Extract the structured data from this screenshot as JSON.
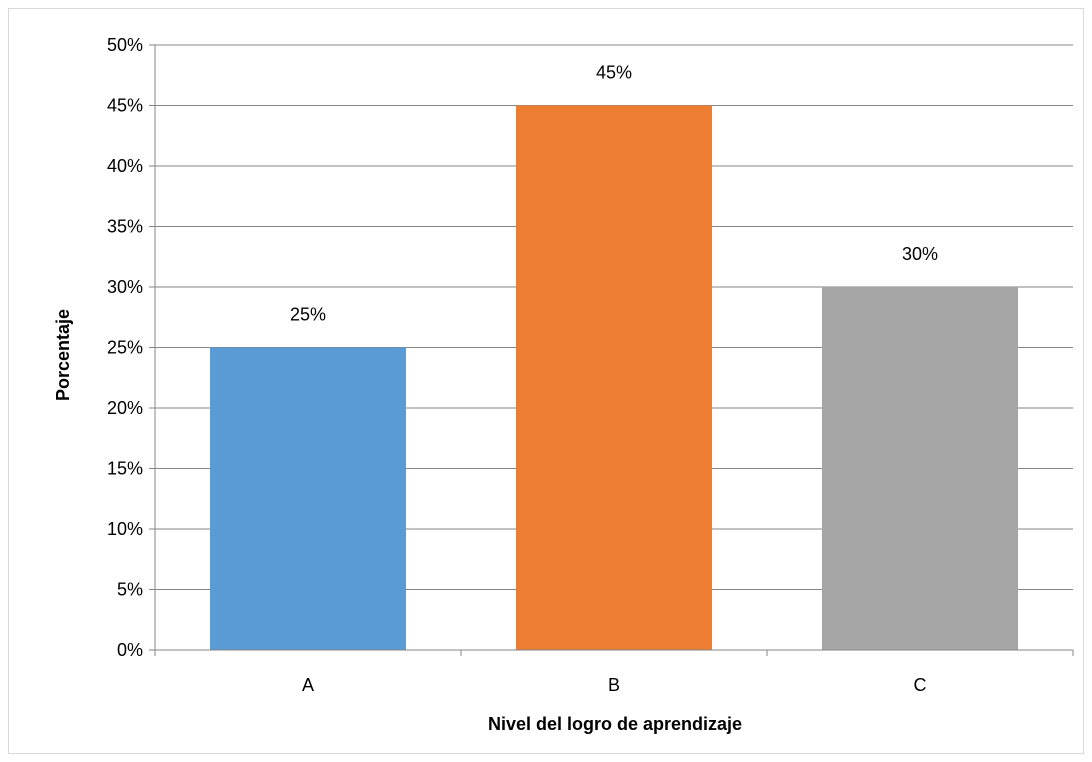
{
  "chart_data": {
    "type": "bar",
    "title": "",
    "xlabel": "Nivel del logro de aprendizaje",
    "ylabel": "Porcentaje",
    "categories": [
      "A",
      "B",
      "C"
    ],
    "values": [
      25,
      45,
      30
    ],
    "data_labels": [
      "25%",
      "45%",
      "30%"
    ],
    "colors": [
      "#5b9bd5",
      "#ed7d31",
      "#a5a5a5"
    ],
    "ylim": [
      0,
      50
    ],
    "y_ticks": [
      0,
      5,
      10,
      15,
      20,
      25,
      30,
      35,
      40,
      45,
      50
    ],
    "y_tick_labels": [
      "0%",
      "5%",
      "10%",
      "15%",
      "20%",
      "25%",
      "30%",
      "35%",
      "40%",
      "45%",
      "50%"
    ],
    "grid": true,
    "legend": "none"
  }
}
